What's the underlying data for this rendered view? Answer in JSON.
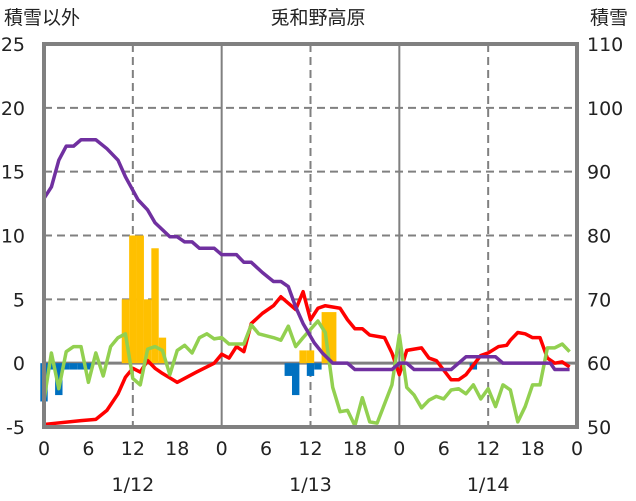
{
  "chart_data": {
    "type": "line+bar",
    "title": "兎和野高原",
    "ylabel_left": "積雪以外",
    "ylabel_right": "積雪",
    "ylim_left": [
      -5,
      25
    ],
    "ylim_right": [
      50,
      110
    ],
    "yticks_left": [
      "-5",
      "0",
      "5",
      "10",
      "15",
      "20",
      "25"
    ],
    "yticks_right": [
      "50",
      "60",
      "70",
      "80",
      "90",
      "100",
      "110"
    ],
    "xlim_hours": [
      0,
      72
    ],
    "xticks": [
      "0",
      "6",
      "12",
      "18",
      "0",
      "6",
      "12",
      "18",
      "0",
      "6",
      "12",
      "18",
      "0"
    ],
    "dates": [
      "1/12",
      "1/13",
      "1/14"
    ],
    "grid": true,
    "bars_orange": {
      "color": "#FFC000",
      "points": [
        [
          11,
          5
        ],
        [
          12,
          10
        ],
        [
          13,
          10
        ],
        [
          14,
          5
        ],
        [
          15,
          9
        ],
        [
          16,
          2
        ],
        [
          35,
          1
        ],
        [
          36,
          1
        ],
        [
          38,
          4
        ],
        [
          39,
          4
        ]
      ]
    },
    "bars_blue": {
      "color": "#0070C0",
      "points": [
        [
          0,
          -3
        ],
        [
          1,
          -0.5
        ],
        [
          2,
          -2.5
        ],
        [
          3,
          -0.5
        ],
        [
          4,
          -0.5
        ],
        [
          5,
          -0.5
        ],
        [
          6,
          -0.5
        ],
        [
          33,
          -1
        ],
        [
          34,
          -2.5
        ],
        [
          36,
          -1
        ],
        [
          37,
          -0.5
        ],
        [
          58,
          -0.5
        ]
      ]
    },
    "series": [
      {
        "id": "red",
        "axis": "left",
        "color": "#FF0000",
        "points": [
          [
            0,
            -4.8
          ],
          [
            5,
            -4.5
          ],
          [
            7,
            -4.4
          ],
          [
            8.5,
            -3.7
          ],
          [
            10,
            -2.4
          ],
          [
            11,
            -1.1
          ],
          [
            12,
            -0.4
          ],
          [
            13,
            -0.7
          ],
          [
            14,
            0.2
          ],
          [
            15,
            -0.4
          ],
          [
            16,
            -0.8
          ],
          [
            18,
            -1.5
          ],
          [
            20.6,
            -0.7
          ],
          [
            23,
            0
          ],
          [
            24,
            0.7
          ],
          [
            25,
            0.4
          ],
          [
            26,
            1.3
          ],
          [
            27,
            0.9
          ],
          [
            28,
            3.1
          ],
          [
            29.5,
            3.9
          ],
          [
            31,
            4.5
          ],
          [
            32,
            5.2
          ],
          [
            33,
            4.7
          ],
          [
            34,
            4.2
          ],
          [
            35,
            5.6
          ],
          [
            36,
            3.4
          ],
          [
            37,
            4.3
          ],
          [
            38,
            4.5
          ],
          [
            40,
            4.3
          ],
          [
            41,
            3.4
          ],
          [
            42,
            2.7
          ],
          [
            43,
            2.7
          ],
          [
            44,
            2.2
          ],
          [
            46,
            2.0
          ],
          [
            47,
            0.8
          ],
          [
            48,
            -0.9
          ],
          [
            49,
            1.0
          ],
          [
            51,
            1.2
          ],
          [
            52,
            0.4
          ],
          [
            53,
            0.2
          ],
          [
            55,
            -1.3
          ],
          [
            56,
            -1.3
          ],
          [
            57,
            -0.9
          ],
          [
            59,
            0.6
          ],
          [
            60,
            0.8
          ],
          [
            61.4,
            1.3
          ],
          [
            62.5,
            1.4
          ],
          [
            63,
            1.8
          ],
          [
            64,
            2.4
          ],
          [
            65,
            2.3
          ],
          [
            66,
            2.0
          ],
          [
            67,
            2.0
          ],
          [
            68,
            0.4
          ],
          [
            69,
            0
          ],
          [
            70,
            0.1
          ],
          [
            71,
            -0.3
          ]
        ]
      },
      {
        "id": "green",
        "axis": "left",
        "color": "#92D050",
        "points": [
          [
            0,
            -2.9
          ],
          [
            1,
            0.8
          ],
          [
            2,
            -2.0
          ],
          [
            3,
            0.9
          ],
          [
            4,
            1.3
          ],
          [
            5,
            1.3
          ],
          [
            6,
            -1.5
          ],
          [
            7,
            0.8
          ],
          [
            8,
            -1.0
          ],
          [
            9,
            1.3
          ],
          [
            10,
            2.0
          ],
          [
            11,
            2.3
          ],
          [
            12,
            -1.2
          ],
          [
            13,
            -1.7
          ],
          [
            14,
            1.1
          ],
          [
            15,
            1.3
          ],
          [
            16,
            1.0
          ],
          [
            17,
            -0.9
          ],
          [
            18,
            1.0
          ],
          [
            19,
            1.4
          ],
          [
            20,
            0.8
          ],
          [
            21,
            2.0
          ],
          [
            22,
            2.3
          ],
          [
            23,
            1.9
          ],
          [
            24,
            2.0
          ],
          [
            25,
            1.5
          ],
          [
            27,
            1.5
          ],
          [
            28,
            3.0
          ],
          [
            29,
            2.3
          ],
          [
            31,
            2.0
          ],
          [
            32,
            1.8
          ],
          [
            33,
            2.9
          ],
          [
            34,
            1.3
          ],
          [
            35,
            2.0
          ],
          [
            37,
            3.3
          ],
          [
            38,
            2.4
          ],
          [
            39,
            -1.9
          ],
          [
            40,
            -3.8
          ],
          [
            41,
            -3.7
          ],
          [
            42,
            -4.9
          ],
          [
            43,
            -2.7
          ],
          [
            44,
            -4.6
          ],
          [
            45,
            -4.7
          ],
          [
            47,
            -1.7
          ],
          [
            48,
            2.2
          ],
          [
            49,
            -1.9
          ],
          [
            50,
            -2.5
          ],
          [
            51,
            -3.5
          ],
          [
            52,
            -2.9
          ],
          [
            53,
            -2.6
          ],
          [
            54,
            -2.8
          ],
          [
            55,
            -2.1
          ],
          [
            56,
            -2.0
          ],
          [
            57,
            -2.4
          ],
          [
            58,
            -1.7
          ],
          [
            59,
            -2.8
          ],
          [
            60,
            -2.0
          ],
          [
            61,
            -3.4
          ],
          [
            62,
            -1.7
          ],
          [
            63,
            -2.1
          ],
          [
            64,
            -4.6
          ],
          [
            65,
            -3.4
          ],
          [
            66,
            -1.7
          ],
          [
            67,
            -1.7
          ],
          [
            68,
            1.2
          ],
          [
            69,
            1.2
          ],
          [
            70,
            1.5
          ],
          [
            71,
            0.9
          ]
        ]
      },
      {
        "id": "purple",
        "axis": "right",
        "color": "#7030A0",
        "points": [
          [
            0,
            85.8
          ],
          [
            1,
            87.6
          ],
          [
            2,
            91.8
          ],
          [
            3,
            94
          ],
          [
            4,
            94
          ],
          [
            5,
            95
          ],
          [
            7,
            95
          ],
          [
            8.5,
            93.6
          ],
          [
            10,
            91.8
          ],
          [
            11,
            89.2
          ],
          [
            12.7,
            85.6
          ],
          [
            14,
            84
          ],
          [
            15,
            82
          ],
          [
            17,
            79.8
          ],
          [
            18,
            79.8
          ],
          [
            19,
            79
          ],
          [
            20,
            79
          ],
          [
            21,
            78
          ],
          [
            23,
            78
          ],
          [
            24,
            77
          ],
          [
            26,
            77
          ],
          [
            27,
            75.8
          ],
          [
            28,
            75.8
          ],
          [
            29.5,
            74.2
          ],
          [
            31,
            72.8
          ],
          [
            32,
            72.8
          ],
          [
            33,
            72
          ],
          [
            34,
            68.8
          ],
          [
            35,
            66.2
          ],
          [
            36.5,
            63.2
          ],
          [
            37.6,
            61.6
          ],
          [
            39,
            60
          ],
          [
            41,
            60
          ],
          [
            42,
            59
          ],
          [
            47,
            59
          ],
          [
            48,
            60
          ],
          [
            49,
            60
          ],
          [
            50,
            59
          ],
          [
            55,
            59
          ],
          [
            57,
            61
          ],
          [
            61,
            61
          ],
          [
            62,
            60
          ],
          [
            68.4,
            60
          ],
          [
            69,
            59
          ],
          [
            71,
            59
          ]
        ]
      }
    ]
  }
}
